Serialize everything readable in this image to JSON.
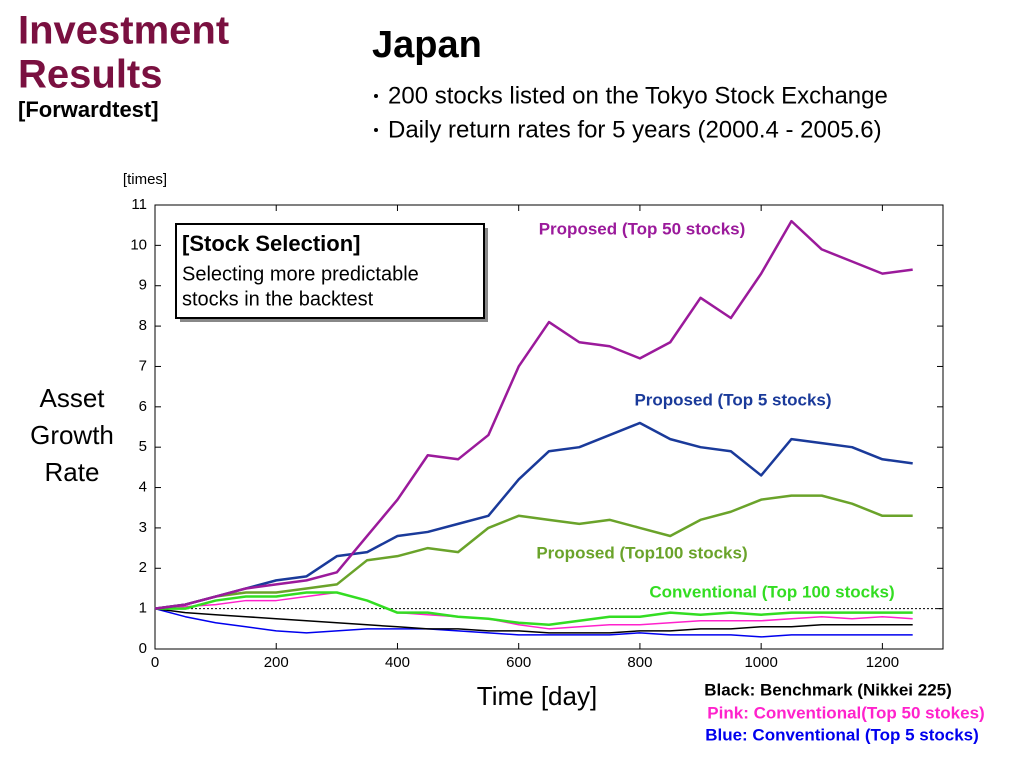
{
  "slide": {
    "title": [
      "Investment",
      "Results"
    ],
    "subtitle": "[Forwardtest]",
    "heading": "Japan",
    "bullets": [
      "200 stocks listed on the Tokyo Stock Exchange",
      "Daily return rates for 5 years (2000.4 - 2005.6)"
    ],
    "callout": {
      "title": "[Stock Selection]",
      "lines": [
        "Selecting more predictable",
        "stocks in the backtest"
      ]
    }
  },
  "chart_data": {
    "type": "line",
    "y_unit": "[times]",
    "y_label": [
      "Asset",
      "Growth",
      "Rate"
    ],
    "x_label": "Time [day]",
    "xlim": [
      0,
      1300
    ],
    "ylim": [
      0,
      11
    ],
    "xticks": [
      0,
      200,
      400,
      600,
      800,
      1000,
      1200
    ],
    "yticks": [
      0,
      1,
      2,
      3,
      4,
      5,
      6,
      7,
      8,
      9,
      10,
      11
    ],
    "reference_line": 1,
    "x": [
      0,
      50,
      100,
      150,
      200,
      250,
      300,
      350,
      400,
      450,
      500,
      550,
      600,
      650,
      700,
      750,
      800,
      850,
      900,
      950,
      1000,
      1050,
      1100,
      1150,
      1200,
      1250
    ],
    "series": [
      {
        "name": "Proposed (Top 50 stocks)",
        "color": "#9b1a9b",
        "values": [
          1,
          1.1,
          1.3,
          1.5,
          1.6,
          1.7,
          1.9,
          2.8,
          3.7,
          4.8,
          4.7,
          5.3,
          7,
          8.1,
          7.6,
          7.5,
          7.2,
          7.6,
          8.7,
          8.2,
          9.3,
          10.6,
          9.9,
          9.6,
          9.3,
          9.4
        ]
      },
      {
        "name": "Proposed (Top 5 stocks)",
        "color": "#1a3a9a",
        "values": [
          1,
          1.1,
          1.3,
          1.5,
          1.7,
          1.8,
          2.3,
          2.4,
          2.8,
          2.9,
          3.1,
          3.3,
          4.2,
          4.9,
          5.0,
          5.3,
          5.6,
          5.2,
          5.0,
          4.9,
          4.3,
          5.2,
          5.1,
          5.0,
          4.7,
          4.6
        ]
      },
      {
        "name": "Proposed (Top100 stocks)",
        "color": "#6aa32a",
        "values": [
          1,
          1.1,
          1.3,
          1.4,
          1.4,
          1.5,
          1.6,
          2.2,
          2.3,
          2.5,
          2.4,
          3.0,
          3.3,
          3.2,
          3.1,
          3.2,
          3.0,
          2.8,
          3.2,
          3.4,
          3.7,
          3.8,
          3.8,
          3.6,
          3.3,
          3.3
        ]
      },
      {
        "name": "Conventional (Top 100 stocks)",
        "color": "#33dd22",
        "values": [
          1,
          1.0,
          1.2,
          1.3,
          1.3,
          1.4,
          1.4,
          1.2,
          0.9,
          0.9,
          0.8,
          0.75,
          0.65,
          0.6,
          0.7,
          0.8,
          0.8,
          0.9,
          0.85,
          0.9,
          0.85,
          0.9,
          0.9,
          0.9,
          0.9,
          0.9
        ]
      },
      {
        "name": "Black: Benchmark (Nikkei 225)",
        "color": "#000000",
        "values": [
          1,
          0.9,
          0.85,
          0.8,
          0.75,
          0.7,
          0.65,
          0.6,
          0.55,
          0.5,
          0.5,
          0.45,
          0.45,
          0.4,
          0.4,
          0.4,
          0.45,
          0.45,
          0.5,
          0.5,
          0.55,
          0.55,
          0.6,
          0.6,
          0.6,
          0.6
        ]
      },
      {
        "name": "Pink: Conventional(Top 50 stokes)",
        "color": "#ff22cc",
        "values": [
          1,
          1.05,
          1.1,
          1.2,
          1.2,
          1.3,
          1.4,
          1.2,
          0.9,
          0.85,
          0.8,
          0.75,
          0.6,
          0.5,
          0.55,
          0.6,
          0.6,
          0.65,
          0.7,
          0.7,
          0.7,
          0.75,
          0.8,
          0.75,
          0.8,
          0.75
        ]
      },
      {
        "name": "Blue: Conventional (Top 5 stocks)",
        "color": "#0000ee",
        "values": [
          1,
          0.8,
          0.65,
          0.55,
          0.45,
          0.4,
          0.45,
          0.5,
          0.5,
          0.5,
          0.45,
          0.4,
          0.35,
          0.35,
          0.35,
          0.35,
          0.4,
          0.35,
          0.35,
          0.35,
          0.3,
          0.35,
          0.35,
          0.35,
          0.35,
          0.35
        ]
      }
    ]
  }
}
